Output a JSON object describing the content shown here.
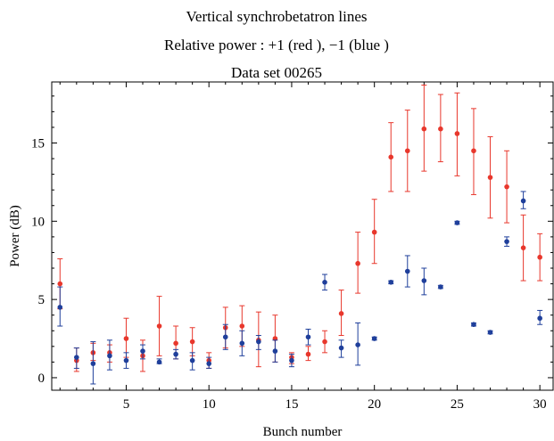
{
  "chart_data": {
    "type": "scatter",
    "title_lines": [
      "Vertical synchrobetatron    lines",
      "Relative power : +1 (red ), −1 (blue )",
      "Data  set 00265"
    ],
    "xlabel": "Bunch  number",
    "ylabel": "Power  (dB)",
    "xlim": [
      0.5,
      30.8
    ],
    "ylim": [
      -0.8,
      18.9
    ],
    "x_ticks": [
      5,
      10,
      15,
      20,
      25,
      30
    ],
    "y_ticks": [
      0,
      5,
      10,
      15
    ],
    "grid": false,
    "series": [
      {
        "color": "#e8372c",
        "points": [
          {
            "x": 1,
            "y": 6.0,
            "lo": 4.4,
            "hi": 7.6
          },
          {
            "x": 2,
            "y": 1.1,
            "lo": 0.4,
            "hi": 1.9
          },
          {
            "x": 3,
            "y": 1.6,
            "lo": 1.1,
            "hi": 2.2
          },
          {
            "x": 4,
            "y": 1.6,
            "lo": 1.0,
            "hi": 2.1
          },
          {
            "x": 5,
            "y": 2.5,
            "lo": 1.3,
            "hi": 3.8
          },
          {
            "x": 6,
            "y": 1.4,
            "lo": 0.4,
            "hi": 2.4
          },
          {
            "x": 7,
            "y": 3.3,
            "lo": 1.4,
            "hi": 5.2
          },
          {
            "x": 8,
            "y": 2.2,
            "lo": 1.2,
            "hi": 3.3
          },
          {
            "x": 9,
            "y": 2.3,
            "lo": 1.4,
            "hi": 3.2
          },
          {
            "x": 10,
            "y": 1.1,
            "lo": 0.6,
            "hi": 1.6
          },
          {
            "x": 11,
            "y": 3.2,
            "lo": 1.9,
            "hi": 4.5
          },
          {
            "x": 12,
            "y": 3.3,
            "lo": 2.0,
            "hi": 4.6
          },
          {
            "x": 13,
            "y": 2.4,
            "lo": 0.7,
            "hi": 4.2
          },
          {
            "x": 14,
            "y": 2.5,
            "lo": 1.0,
            "hi": 4.0
          },
          {
            "x": 15,
            "y": 1.3,
            "lo": 0.9,
            "hi": 1.6
          },
          {
            "x": 16,
            "y": 1.5,
            "lo": 1.1,
            "hi": 2.0
          },
          {
            "x": 17,
            "y": 2.3,
            "lo": 1.6,
            "hi": 3.0
          },
          {
            "x": 18,
            "y": 4.1,
            "lo": 2.7,
            "hi": 5.6
          },
          {
            "x": 19,
            "y": 7.3,
            "lo": 5.4,
            "hi": 9.3
          },
          {
            "x": 20,
            "y": 9.3,
            "lo": 7.3,
            "hi": 11.4
          },
          {
            "x": 21,
            "y": 14.1,
            "lo": 11.9,
            "hi": 16.3
          },
          {
            "x": 22,
            "y": 14.5,
            "lo": 11.9,
            "hi": 17.1
          },
          {
            "x": 23,
            "y": 15.9,
            "lo": 13.2,
            "hi": 18.7
          },
          {
            "x": 24,
            "y": 15.9,
            "lo": 13.8,
            "hi": 18.1
          },
          {
            "x": 25,
            "y": 15.6,
            "lo": 12.9,
            "hi": 18.2
          },
          {
            "x": 26,
            "y": 14.5,
            "lo": 11.7,
            "hi": 17.2
          },
          {
            "x": 27,
            "y": 12.8,
            "lo": 10.2,
            "hi": 15.4
          },
          {
            "x": 28,
            "y": 12.2,
            "lo": 9.9,
            "hi": 14.5
          },
          {
            "x": 29,
            "y": 8.3,
            "lo": 6.2,
            "hi": 10.4
          },
          {
            "x": 30,
            "y": 7.7,
            "lo": 6.2,
            "hi": 9.2
          }
        ]
      },
      {
        "color": "#1f3f9b",
        "points": [
          {
            "x": 1,
            "y": 4.5,
            "lo": 3.3,
            "hi": 5.8
          },
          {
            "x": 2,
            "y": 1.3,
            "lo": 0.6,
            "hi": 1.9
          },
          {
            "x": 3,
            "y": 0.9,
            "lo": -0.4,
            "hi": 2.3
          },
          {
            "x": 4,
            "y": 1.4,
            "lo": 0.5,
            "hi": 2.4
          },
          {
            "x": 5,
            "y": 1.1,
            "lo": 0.6,
            "hi": 1.6
          },
          {
            "x": 6,
            "y": 1.7,
            "lo": 1.2,
            "hi": 2.1
          },
          {
            "x": 7,
            "y": 1.0,
            "lo": 0.9,
            "hi": 1.2
          },
          {
            "x": 8,
            "y": 1.5,
            "lo": 1.2,
            "hi": 1.8
          },
          {
            "x": 9,
            "y": 1.1,
            "lo": 0.5,
            "hi": 1.6
          },
          {
            "x": 10,
            "y": 0.9,
            "lo": 0.6,
            "hi": 1.3
          },
          {
            "x": 11,
            "y": 2.6,
            "lo": 1.8,
            "hi": 3.4
          },
          {
            "x": 12,
            "y": 2.2,
            "lo": 1.4,
            "hi": 3.0
          },
          {
            "x": 13,
            "y": 2.3,
            "lo": 1.8,
            "hi": 2.7
          },
          {
            "x": 14,
            "y": 1.7,
            "lo": 1.0,
            "hi": 2.4
          },
          {
            "x": 15,
            "y": 1.1,
            "lo": 0.7,
            "hi": 1.5
          },
          {
            "x": 16,
            "y": 2.6,
            "lo": 2.1,
            "hi": 3.1
          },
          {
            "x": 17,
            "y": 6.1,
            "lo": 5.6,
            "hi": 6.6
          },
          {
            "x": 18,
            "y": 1.9,
            "lo": 1.3,
            "hi": 2.4
          },
          {
            "x": 19,
            "y": 2.1,
            "lo": 0.8,
            "hi": 3.5
          },
          {
            "x": 20,
            "y": 2.5,
            "lo": 2.4,
            "hi": 2.6
          },
          {
            "x": 21,
            "y": 6.1,
            "lo": 6.0,
            "hi": 6.2
          },
          {
            "x": 22,
            "y": 6.8,
            "lo": 5.8,
            "hi": 7.8
          },
          {
            "x": 23,
            "y": 6.2,
            "lo": 5.3,
            "hi": 7.0
          },
          {
            "x": 24,
            "y": 5.8,
            "lo": 5.7,
            "hi": 5.9
          },
          {
            "x": 25,
            "y": 9.9,
            "lo": 9.8,
            "hi": 10.0
          },
          {
            "x": 26,
            "y": 3.4,
            "lo": 3.3,
            "hi": 3.5
          },
          {
            "x": 27,
            "y": 2.9,
            "lo": 2.8,
            "hi": 3.0
          },
          {
            "x": 28,
            "y": 8.7,
            "lo": 8.4,
            "hi": 9.0
          },
          {
            "x": 29,
            "y": 11.3,
            "lo": 10.8,
            "hi": 11.9
          },
          {
            "x": 30,
            "y": 3.8,
            "lo": 3.4,
            "hi": 4.3
          }
        ]
      }
    ]
  }
}
